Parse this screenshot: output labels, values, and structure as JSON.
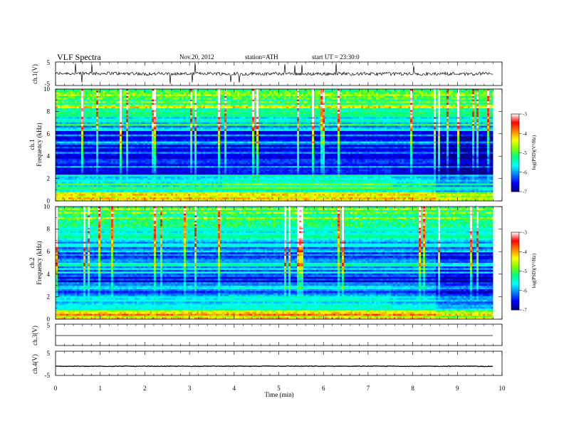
{
  "header": {
    "title": "VLF  Spectra",
    "date": "Nov.20, 2012",
    "station": "station=ATH",
    "start": "start  UT  =    23:30:0"
  },
  "chart_data": [
    {
      "type": "line",
      "panel": "ch1-waveform",
      "ylabel": "ch.1(V)",
      "yticks": [
        "5",
        "-5"
      ],
      "ylim": [
        -5,
        5
      ],
      "description_values": {
        "baseline": 0,
        "noise_amplitude": 0.6
      }
    },
    {
      "type": "heatmap",
      "panel": "ch1-spectrogram",
      "ylabel": [
        "ch.1",
        "Frequency  (kHz)"
      ],
      "yticks": [
        "0",
        "2",
        "4",
        "6",
        "8",
        "10"
      ],
      "ylim": [
        0,
        10
      ],
      "colorbar": {
        "label": "log(PSD)(V²/Hz)",
        "ticks": [
          "-3",
          "-4",
          "-5",
          "-6",
          "-7"
        ],
        "range": [
          -7,
          -3
        ]
      }
    },
    {
      "type": "heatmap",
      "panel": "ch2-spectrogram",
      "ylabel": [
        "ch.2",
        "Frequency  (kHz)"
      ],
      "yticks": [
        "0",
        "2",
        "4",
        "6",
        "8",
        "10"
      ],
      "ylim": [
        0,
        10
      ],
      "colorbar": {
        "label": "log(PSD)(V²/Hz)",
        "ticks": [
          "-3",
          "-4",
          "-5",
          "-6",
          "-7"
        ],
        "range": [
          -7,
          -3
        ]
      }
    },
    {
      "type": "line",
      "panel": "ch3-waveform",
      "ylabel": "ch.3(V)",
      "yticks": [
        "5"
      ],
      "ylim": [
        -5,
        5
      ],
      "description_values": {
        "baseline": 0,
        "noise_amplitude": 0
      }
    },
    {
      "type": "line",
      "panel": "ch4-waveform",
      "ylabel": "ch.4(V)",
      "yticks": [
        "5",
        "-5"
      ],
      "ylim": [
        -5,
        5
      ],
      "description_values": {
        "baseline": -1.2,
        "noise_amplitude": 0.25
      }
    }
  ],
  "xaxis": {
    "label": "Time  (min)",
    "ticks": [
      "0",
      "1",
      "2",
      "3",
      "4",
      "5",
      "6",
      "7",
      "8",
      "9",
      "10"
    ],
    "xlim": [
      0,
      10
    ],
    "data_end": 9.8
  },
  "colors": {
    "colormap": [
      "#000080",
      "#0000ff",
      "#0080ff",
      "#00ffff",
      "#00ff80",
      "#80ff00",
      "#ffff00",
      "#ff8000",
      "#ff0000",
      "#ffffff"
    ]
  }
}
